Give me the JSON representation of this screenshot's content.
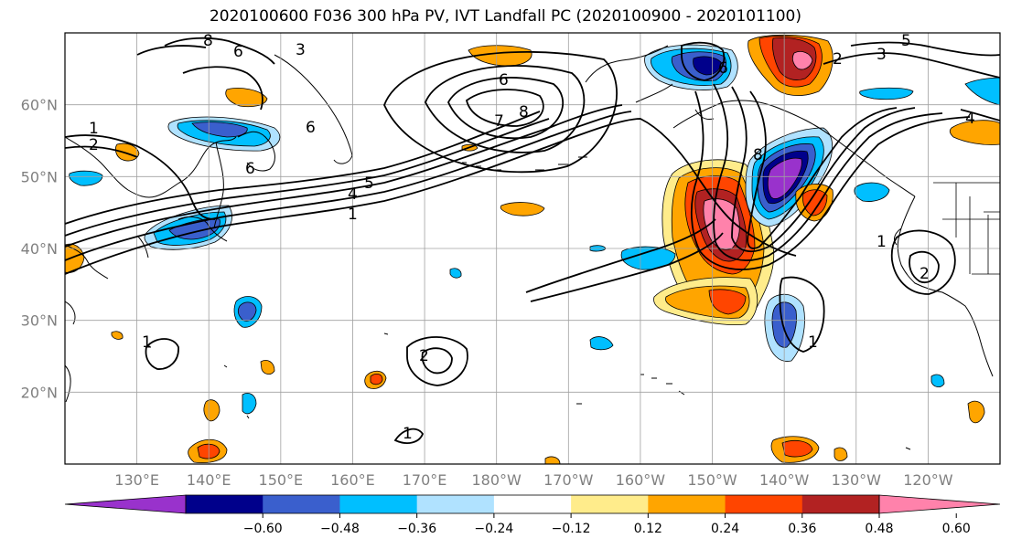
{
  "title": "2020100600 F036 300 hPa PV, IVT Landfall PC (2020100900 - 2020101100)",
  "map": {
    "projection": "PlateCarree",
    "lon_range": [
      120,
      250
    ],
    "lat_range": [
      10,
      70
    ],
    "grid_lons": [
      130,
      140,
      150,
      160,
      170,
      180,
      190,
      200,
      210,
      220,
      230,
      240
    ],
    "grid_lats": [
      20,
      30,
      40,
      50,
      60
    ],
    "lon_labels": [
      "130°E",
      "140°E",
      "150°E",
      "160°E",
      "170°E",
      "180°W",
      "170°W",
      "160°W",
      "150°W",
      "140°W",
      "130°W",
      "120°W"
    ],
    "lat_labels": [
      "20°N",
      "30°N",
      "40°N",
      "50°N",
      "60°N"
    ],
    "gridline_color": "#a0a0a0",
    "coastline_color": "#000000"
  },
  "fill_field": {
    "name": "IVT Landfall PC",
    "colors": {
      "neg_60": "#9932cc",
      "neg_48": "#00008b",
      "neg_36": "#3a5fcd",
      "neg_24": "#00bfff",
      "neg_12": "#b0e2ff",
      "pos_12": "#ffec8b",
      "pos_24": "#ffa500",
      "pos_36": "#ff4500",
      "pos_48": "#b22222",
      "pos_60": "#ff82ab"
    }
  },
  "contour_field": {
    "name": "300 hPa PV",
    "color": "#000000",
    "labels": [
      "1",
      "2",
      "3",
      "4",
      "5",
      "6",
      "7",
      "8"
    ]
  },
  "colorbar": {
    "ticks": [
      "−0.60",
      "−0.48",
      "−0.36",
      "−0.24",
      "−0.12",
      "0.12",
      "0.24",
      "0.36",
      "0.48",
      "0.60"
    ],
    "bins": [
      "#9932cc",
      "#00008b",
      "#3a5fcd",
      "#00bfff",
      "#b0e2ff",
      "#ffffff",
      "#ffec8b",
      "#ffa500",
      "#ff4500",
      "#b22222",
      "#ff82ab"
    ],
    "extend": "both"
  }
}
